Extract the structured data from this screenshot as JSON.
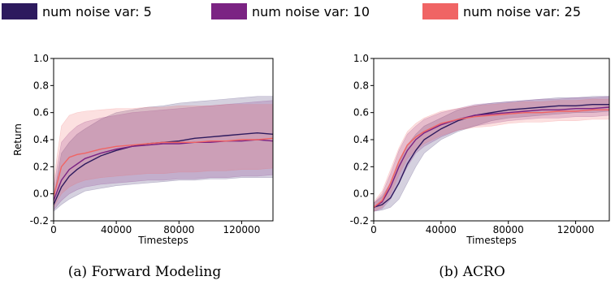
{
  "legend": [
    {
      "label": "num noise var: 5",
      "color": "#2d1a5e"
    },
    {
      "label": "num noise var: 10",
      "color": "#7b2383"
    },
    {
      "label": "num noise var: 25",
      "color": "#f06464"
    }
  ],
  "chart_data": [
    {
      "type": "line",
      "caption": "(a) Forward Modeling",
      "xlabel": "Timesteps",
      "ylabel": "Return",
      "xlim": [
        0,
        140000
      ],
      "ylim": [
        -0.2,
        1.0
      ],
      "xticks": [
        0,
        40000,
        80000,
        120000
      ],
      "yticks": [
        -0.2,
        0.0,
        0.2,
        0.4,
        0.6,
        0.8,
        1.0
      ],
      "grid": false,
      "series": [
        {
          "name": "num noise var: 5",
          "x": [
            0,
            5000,
            10000,
            15000,
            20000,
            30000,
            40000,
            50000,
            60000,
            70000,
            80000,
            90000,
            100000,
            110000,
            120000,
            130000,
            140000
          ],
          "mean": [
            -0.08,
            0.05,
            0.13,
            0.18,
            0.22,
            0.28,
            0.32,
            0.35,
            0.37,
            0.38,
            0.39,
            0.41,
            0.42,
            0.43,
            0.44,
            0.45,
            0.44
          ],
          "lower": [
            -0.13,
            -0.08,
            -0.04,
            -0.01,
            0.02,
            0.04,
            0.06,
            0.07,
            0.08,
            0.09,
            0.1,
            0.1,
            0.11,
            0.11,
            0.12,
            0.12,
            0.12
          ],
          "upper": [
            -0.02,
            0.3,
            0.38,
            0.44,
            0.48,
            0.55,
            0.6,
            0.62,
            0.64,
            0.65,
            0.67,
            0.68,
            0.69,
            0.7,
            0.71,
            0.72,
            0.72
          ]
        },
        {
          "name": "num noise var: 10",
          "x": [
            0,
            5000,
            10000,
            15000,
            20000,
            30000,
            40000,
            50000,
            60000,
            70000,
            80000,
            90000,
            100000,
            110000,
            120000,
            130000,
            140000
          ],
          "mean": [
            -0.05,
            0.1,
            0.18,
            0.22,
            0.26,
            0.3,
            0.33,
            0.35,
            0.36,
            0.37,
            0.37,
            0.38,
            0.38,
            0.39,
            0.39,
            0.4,
            0.39
          ],
          "lower": [
            -0.12,
            -0.05,
            0.0,
            0.03,
            0.05,
            0.07,
            0.08,
            0.09,
            0.1,
            0.1,
            0.11,
            0.11,
            0.12,
            0.12,
            0.13,
            0.13,
            0.14
          ],
          "upper": [
            0.05,
            0.38,
            0.45,
            0.5,
            0.53,
            0.56,
            0.58,
            0.6,
            0.61,
            0.62,
            0.63,
            0.64,
            0.65,
            0.66,
            0.67,
            0.68,
            0.69
          ]
        },
        {
          "name": "num noise var: 25",
          "x": [
            0,
            5000,
            10000,
            15000,
            20000,
            30000,
            40000,
            50000,
            60000,
            70000,
            80000,
            90000,
            100000,
            110000,
            120000,
            130000,
            140000
          ],
          "mean": [
            -0.02,
            0.2,
            0.27,
            0.29,
            0.3,
            0.33,
            0.35,
            0.36,
            0.37,
            0.38,
            0.38,
            0.38,
            0.39,
            0.39,
            0.4,
            0.4,
            0.41
          ],
          "lower": [
            -0.1,
            0.0,
            0.05,
            0.08,
            0.1,
            0.12,
            0.13,
            0.14,
            0.15,
            0.15,
            0.16,
            0.16,
            0.17,
            0.17,
            0.18,
            0.18,
            0.19
          ],
          "upper": [
            0.1,
            0.5,
            0.58,
            0.6,
            0.61,
            0.62,
            0.63,
            0.63,
            0.64,
            0.64,
            0.65,
            0.65,
            0.65,
            0.66,
            0.66,
            0.66,
            0.66
          ]
        }
      ]
    },
    {
      "type": "line",
      "caption": "(b) ACRO",
      "xlabel": "Timesteps",
      "ylabel": "",
      "xlim": [
        0,
        140000
      ],
      "ylim": [
        -0.2,
        1.0
      ],
      "xticks": [
        0,
        40000,
        80000,
        120000
      ],
      "yticks": [
        -0.2,
        0.0,
        0.2,
        0.4,
        0.6,
        0.8,
        1.0
      ],
      "grid": false,
      "series": [
        {
          "name": "num noise var: 5",
          "x": [
            0,
            5000,
            10000,
            15000,
            20000,
            25000,
            30000,
            40000,
            50000,
            60000,
            70000,
            80000,
            90000,
            100000,
            110000,
            120000,
            130000,
            140000
          ],
          "mean": [
            -0.1,
            -0.08,
            -0.03,
            0.08,
            0.22,
            0.32,
            0.4,
            0.48,
            0.54,
            0.58,
            0.6,
            0.62,
            0.63,
            0.64,
            0.65,
            0.65,
            0.66,
            0.66
          ],
          "lower": [
            -0.13,
            -0.12,
            -0.1,
            -0.04,
            0.08,
            0.2,
            0.3,
            0.4,
            0.46,
            0.5,
            0.54,
            0.56,
            0.57,
            0.58,
            0.59,
            0.6,
            0.6,
            0.61
          ],
          "upper": [
            -0.07,
            -0.02,
            0.08,
            0.22,
            0.36,
            0.44,
            0.5,
            0.56,
            0.62,
            0.65,
            0.67,
            0.68,
            0.69,
            0.7,
            0.71,
            0.71,
            0.72,
            0.72
          ]
        },
        {
          "name": "num noise var: 10",
          "x": [
            0,
            5000,
            10000,
            15000,
            20000,
            25000,
            30000,
            40000,
            50000,
            60000,
            70000,
            80000,
            90000,
            100000,
            110000,
            120000,
            130000,
            140000
          ],
          "mean": [
            -0.1,
            -0.06,
            0.05,
            0.2,
            0.32,
            0.4,
            0.45,
            0.51,
            0.55,
            0.58,
            0.59,
            0.6,
            0.61,
            0.62,
            0.62,
            0.63,
            0.63,
            0.64
          ],
          "lower": [
            -0.13,
            -0.11,
            -0.04,
            0.08,
            0.2,
            0.3,
            0.35,
            0.42,
            0.47,
            0.5,
            0.52,
            0.54,
            0.55,
            0.56,
            0.56,
            0.57,
            0.57,
            0.58
          ],
          "upper": [
            -0.07,
            0.0,
            0.15,
            0.32,
            0.44,
            0.5,
            0.55,
            0.6,
            0.63,
            0.66,
            0.67,
            0.68,
            0.69,
            0.7,
            0.7,
            0.71,
            0.71,
            0.72
          ]
        },
        {
          "name": "num noise var: 25",
          "x": [
            0,
            5000,
            10000,
            15000,
            20000,
            25000,
            30000,
            40000,
            50000,
            60000,
            70000,
            80000,
            90000,
            100000,
            110000,
            120000,
            130000,
            140000
          ],
          "mean": [
            -0.1,
            -0.05,
            0.08,
            0.24,
            0.36,
            0.42,
            0.46,
            0.52,
            0.55,
            0.57,
            0.58,
            0.59,
            0.6,
            0.6,
            0.61,
            0.61,
            0.62,
            0.62
          ],
          "lower": [
            -0.13,
            -0.1,
            0.0,
            0.14,
            0.26,
            0.32,
            0.37,
            0.43,
            0.47,
            0.49,
            0.5,
            0.52,
            0.53,
            0.53,
            0.54,
            0.54,
            0.55,
            0.55
          ],
          "upper": [
            -0.06,
            0.02,
            0.18,
            0.34,
            0.46,
            0.52,
            0.56,
            0.61,
            0.63,
            0.65,
            0.66,
            0.67,
            0.68,
            0.68,
            0.69,
            0.69,
            0.7,
            0.7
          ]
        }
      ]
    }
  ]
}
